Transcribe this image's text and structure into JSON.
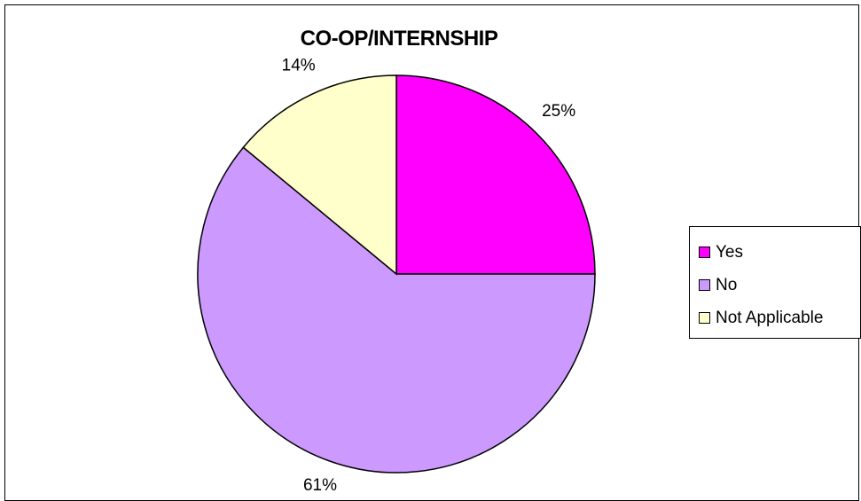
{
  "chart_data": {
    "type": "pie",
    "title": "CO-OP/INTERNSHIP",
    "categories": [
      "Yes",
      "No",
      "Not Applicable"
    ],
    "values": [
      25,
      61,
      14
    ],
    "labels": [
      "25%",
      "61%",
      "14%"
    ],
    "colors": [
      "#ff00ff",
      "#cc99ff",
      "#ffffcc"
    ],
    "legend_position": "right"
  }
}
